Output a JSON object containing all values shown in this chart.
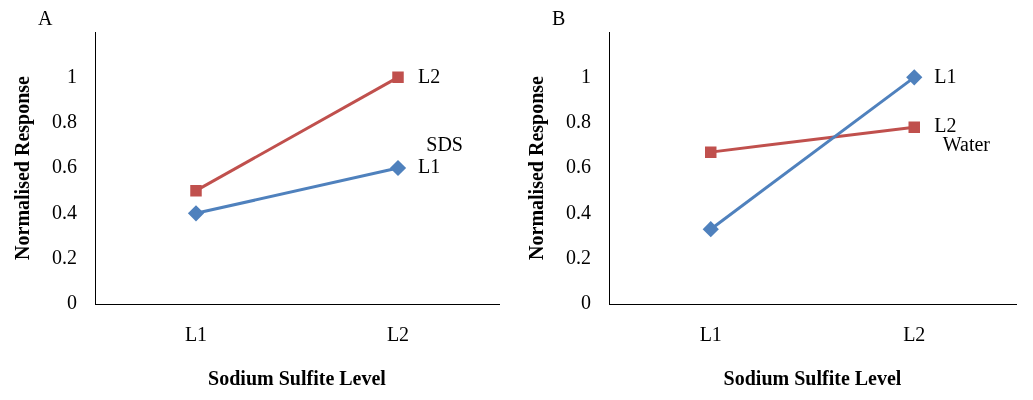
{
  "chart_data": [
    {
      "type": "line",
      "title": "A",
      "xlabel": "Sodium Sulfite Level",
      "ylabel": "Normalised Response",
      "categories": [
        "L1",
        "L2"
      ],
      "ylim": [
        0,
        1.2
      ],
      "yticks": [
        0,
        0.2,
        0.4,
        0.6,
        0.8,
        1
      ],
      "grid": false,
      "legend": false,
      "annotations": [
        "SDS"
      ],
      "series": [
        {
          "name": "L2",
          "color": "#c0504d",
          "marker": "square",
          "values": [
            0.5,
            1.0
          ]
        },
        {
          "name": "L1",
          "color": "#4f81bd",
          "marker": "diamond",
          "values": [
            0.4,
            0.6
          ]
        }
      ]
    },
    {
      "type": "line",
      "title": "B",
      "xlabel": "Sodium Sulfite Level",
      "ylabel": "Normalised Response",
      "categories": [
        "L1",
        "L2"
      ],
      "ylim": [
        0,
        1.2
      ],
      "yticks": [
        0,
        0.2,
        0.4,
        0.6,
        0.8,
        1
      ],
      "grid": false,
      "legend": false,
      "annotations": [
        "Water"
      ],
      "series": [
        {
          "name": "L1",
          "color": "#4f81bd",
          "marker": "diamond",
          "values": [
            0.33,
            1.0
          ]
        },
        {
          "name": "L2",
          "color": "#c0504d",
          "marker": "square",
          "values": [
            0.67,
            0.78
          ]
        }
      ]
    }
  ]
}
